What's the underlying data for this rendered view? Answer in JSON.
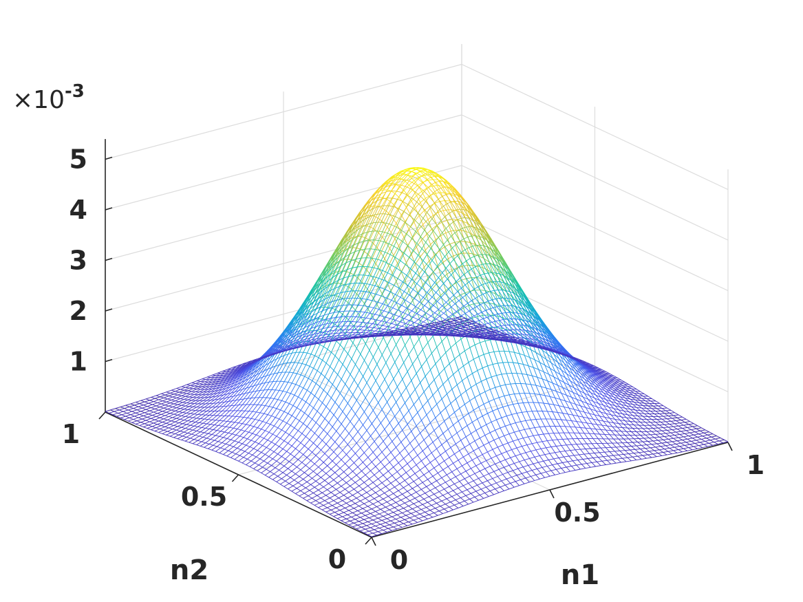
{
  "chart_data": {
    "type": "surface",
    "xlabel": "n1",
    "ylabel": "n2",
    "zlabel": "",
    "exponent_label": "×10",
    "exponent_power": "-3",
    "x_ticks": [
      0,
      0.5,
      1
    ],
    "x_tick_labels": [
      "0",
      "0.5",
      "1"
    ],
    "y_ticks": [
      0,
      0.5,
      1
    ],
    "y_tick_labels": [
      "0",
      "0.5",
      "1"
    ],
    "z_ticks": [
      1,
      2,
      3,
      4,
      5
    ],
    "z_tick_labels": [
      "1",
      "2",
      "3",
      "4",
      "5"
    ],
    "xlim": [
      0,
      1
    ],
    "ylim": [
      0,
      1
    ],
    "zlim": [
      0,
      5.4
    ],
    "z_scale": 0.001,
    "grid": true,
    "colormap": "parula",
    "colormap_stops": [
      "#3e26a8",
      "#4a4ee6",
      "#2f78f4",
      "#13a6d8",
      "#19c3aa",
      "#6fcc61",
      "#c6c034",
      "#f6cd2e",
      "#f9fb0e"
    ],
    "surface_function": "peak near center (n1≈0.5, n2≈0.5), maximum ≈ 5.1e-3 at center, decaying to ≈ 0 at the corners",
    "peak_value": 5.1,
    "samples": [
      {
        "n1": 0.5,
        "n2": 0.5,
        "z": 5.1
      },
      {
        "n1": 0.0,
        "n2": 1.0,
        "z": 0.0
      },
      {
        "n1": 1.0,
        "n2": 0.0,
        "z": 0.0
      },
      {
        "n1": 0.0,
        "n2": 0.0,
        "z": 0.0
      },
      {
        "n1": 1.0,
        "n2": 1.0,
        "z": 0.0
      }
    ]
  }
}
